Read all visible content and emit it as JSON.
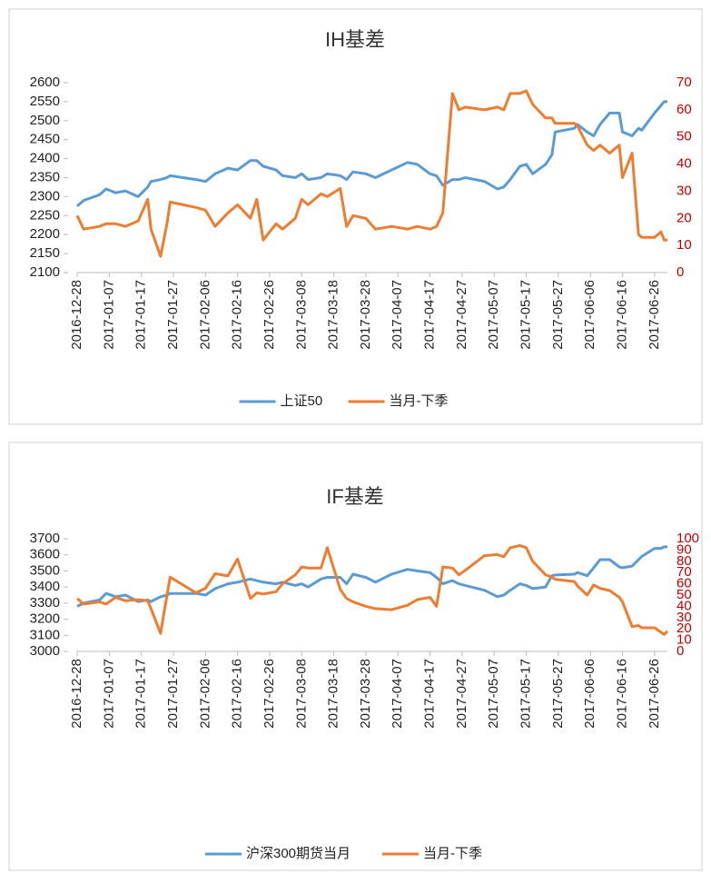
{
  "chart_data": [
    {
      "type": "line",
      "title": "IH基差",
      "x": [
        "2016-12-28",
        "2016-12-30",
        "2017-01-04",
        "2017-01-06",
        "2017-01-09",
        "2017-01-12",
        "2017-01-16",
        "2017-01-19",
        "2017-01-20",
        "2017-01-23",
        "2017-01-25",
        "2017-01-26",
        "2017-02-03",
        "2017-02-06",
        "2017-02-09",
        "2017-02-13",
        "2017-02-16",
        "2017-02-20",
        "2017-02-22",
        "2017-02-24",
        "2017-02-28",
        "2017-03-02",
        "2017-03-06",
        "2017-03-08",
        "2017-03-10",
        "2017-03-14",
        "2017-03-16",
        "2017-03-20",
        "2017-03-22",
        "2017-03-24",
        "2017-03-28",
        "2017-03-31",
        "2017-04-05",
        "2017-04-10",
        "2017-04-13",
        "2017-04-17",
        "2017-04-19",
        "2017-04-21",
        "2017-04-24",
        "2017-04-26",
        "2017-04-28",
        "2017-05-04",
        "2017-05-08",
        "2017-05-10",
        "2017-05-12",
        "2017-05-15",
        "2017-05-17",
        "2017-05-19",
        "2017-05-23",
        "2017-05-25",
        "2017-05-26",
        "2017-06-01",
        "2017-06-02",
        "2017-06-05",
        "2017-06-07",
        "2017-06-09",
        "2017-06-12",
        "2017-06-15",
        "2017-06-16",
        "2017-06-19",
        "2017-06-21",
        "2017-06-22",
        "2017-06-26",
        "2017-06-28",
        "2017-06-29",
        "2017-06-30"
      ],
      "series": [
        {
          "name": "上证50",
          "color": "#5b9bd5",
          "values": [
            2275,
            2290,
            2305,
            2320,
            2310,
            2315,
            2300,
            2325,
            2340,
            2345,
            2350,
            2355,
            2345,
            2340,
            2360,
            2375,
            2370,
            2395,
            2395,
            2380,
            2370,
            2355,
            2350,
            2360,
            2345,
            2350,
            2360,
            2355,
            2345,
            2365,
            2360,
            2350,
            2370,
            2390,
            2385,
            2360,
            2355,
            2330,
            2345,
            2345,
            2350,
            2340,
            2320,
            2325,
            2345,
            2380,
            2385,
            2360,
            2385,
            2410,
            2470,
            2480,
            2490,
            2470,
            2460,
            2490,
            2520,
            2520,
            2470,
            2460,
            2480,
            2475,
            2520,
            2540,
            2550,
            2550
          ]
        },
        {
          "name": "当月-下季",
          "color": "#ed7d31",
          "axis": "y2",
          "values": [
            21,
            16,
            17,
            18,
            18,
            17,
            19,
            27,
            16,
            6,
            18,
            26,
            24,
            23,
            17,
            22,
            25,
            20,
            27,
            12,
            18,
            16,
            20,
            27,
            25,
            29,
            28,
            31,
            17,
            21,
            20,
            16,
            17,
            16,
            17,
            16,
            17,
            22,
            66,
            60,
            61,
            60,
            61,
            60,
            66,
            66,
            67,
            62,
            57,
            57,
            55,
            55,
            54,
            47,
            45,
            47,
            44,
            47,
            35,
            44,
            14,
            13,
            13,
            15,
            12,
            12
          ]
        }
      ],
      "xlim": [
        "2016-12-28",
        "2017-06-30"
      ],
      "xticks": [
        "2016-12-28",
        "2017-01-07",
        "2017-01-17",
        "2017-01-27",
        "2017-02-06",
        "2017-02-16",
        "2017-02-26",
        "2017-03-08",
        "2017-03-18",
        "2017-03-28",
        "2017-04-07",
        "2017-04-17",
        "2017-04-27",
        "2017-05-07",
        "2017-05-17",
        "2017-05-27",
        "2017-06-06",
        "2017-06-16",
        "2017-06-26"
      ],
      "ylim": [
        2100,
        2600
      ],
      "yticks": [
        2100,
        2150,
        2200,
        2250,
        2300,
        2350,
        2400,
        2450,
        2500,
        2550,
        2600
      ],
      "y2lim": [
        0,
        70
      ],
      "y2ticks": [
        0,
        10,
        20,
        30,
        40,
        50,
        60,
        70
      ],
      "legend": "bottom"
    },
    {
      "type": "line",
      "title": "IF基差",
      "x": [
        "2016-12-28",
        "2016-12-30",
        "2017-01-04",
        "2017-01-06",
        "2017-01-09",
        "2017-01-12",
        "2017-01-16",
        "2017-01-19",
        "2017-01-20",
        "2017-01-23",
        "2017-01-25",
        "2017-01-26",
        "2017-02-03",
        "2017-02-06",
        "2017-02-09",
        "2017-02-13",
        "2017-02-16",
        "2017-02-20",
        "2017-02-22",
        "2017-02-24",
        "2017-02-28",
        "2017-03-02",
        "2017-03-06",
        "2017-03-08",
        "2017-03-10",
        "2017-03-14",
        "2017-03-16",
        "2017-03-20",
        "2017-03-22",
        "2017-03-24",
        "2017-03-28",
        "2017-03-31",
        "2017-04-05",
        "2017-04-10",
        "2017-04-13",
        "2017-04-17",
        "2017-04-19",
        "2017-04-21",
        "2017-04-24",
        "2017-04-26",
        "2017-04-28",
        "2017-05-04",
        "2017-05-08",
        "2017-05-10",
        "2017-05-12",
        "2017-05-15",
        "2017-05-17",
        "2017-05-19",
        "2017-05-23",
        "2017-05-25",
        "2017-05-26",
        "2017-06-01",
        "2017-06-02",
        "2017-06-05",
        "2017-06-07",
        "2017-06-09",
        "2017-06-12",
        "2017-06-15",
        "2017-06-16",
        "2017-06-19",
        "2017-06-21",
        "2017-06-22",
        "2017-06-26",
        "2017-06-28",
        "2017-06-29",
        "2017-06-30"
      ],
      "series": [
        {
          "name": "沪深300期货当月",
          "color": "#5b9bd5",
          "values": [
            3280,
            3300,
            3320,
            3360,
            3340,
            3350,
            3310,
            3320,
            3310,
            3340,
            3350,
            3360,
            3360,
            3350,
            3390,
            3420,
            3430,
            3450,
            3440,
            3430,
            3420,
            3430,
            3410,
            3420,
            3400,
            3450,
            3460,
            3460,
            3420,
            3480,
            3460,
            3430,
            3480,
            3510,
            3500,
            3490,
            3460,
            3420,
            3440,
            3420,
            3410,
            3380,
            3340,
            3350,
            3380,
            3420,
            3410,
            3390,
            3400,
            3470,
            3475,
            3480,
            3490,
            3470,
            3520,
            3570,
            3570,
            3525,
            3520,
            3530,
            3570,
            3590,
            3640,
            3640,
            3650,
            3650
          ]
        },
        {
          "name": "当月-下季",
          "color": "#ed7d31",
          "axis": "y2",
          "values": [
            47,
            42,
            44,
            42,
            48,
            45,
            46,
            45,
            38,
            16,
            50,
            66,
            52,
            56,
            69,
            67,
            82,
            47,
            52,
            51,
            53,
            60,
            68,
            75,
            74,
            74,
            92,
            55,
            47,
            44,
            40,
            38,
            37,
            41,
            46,
            48,
            40,
            75,
            74,
            68,
            72,
            85,
            86,
            84,
            92,
            94,
            92,
            80,
            68,
            66,
            64,
            62,
            58,
            50,
            59,
            56,
            54,
            48,
            44,
            22,
            23,
            21,
            21,
            17,
            15,
            18
          ]
        }
      ],
      "xlim": [
        "2016-12-28",
        "2017-06-30"
      ],
      "xticks": [
        "2016-12-28",
        "2017-01-07",
        "2017-01-17",
        "2017-01-27",
        "2017-02-06",
        "2017-02-16",
        "2017-02-26",
        "2017-03-08",
        "2017-03-18",
        "2017-03-28",
        "2017-04-07",
        "2017-04-17",
        "2017-04-27",
        "2017-05-07",
        "2017-05-17",
        "2017-05-27",
        "2017-06-06",
        "2017-06-16",
        "2017-06-26"
      ],
      "ylim": [
        3000,
        3700
      ],
      "yticks": [
        3000,
        3100,
        3200,
        3300,
        3400,
        3500,
        3600,
        3700
      ],
      "y2lim": [
        0,
        100
      ],
      "y2ticks": [
        0,
        10,
        20,
        30,
        40,
        50,
        60,
        70,
        80,
        90,
        100
      ],
      "legend": "bottom"
    }
  ]
}
